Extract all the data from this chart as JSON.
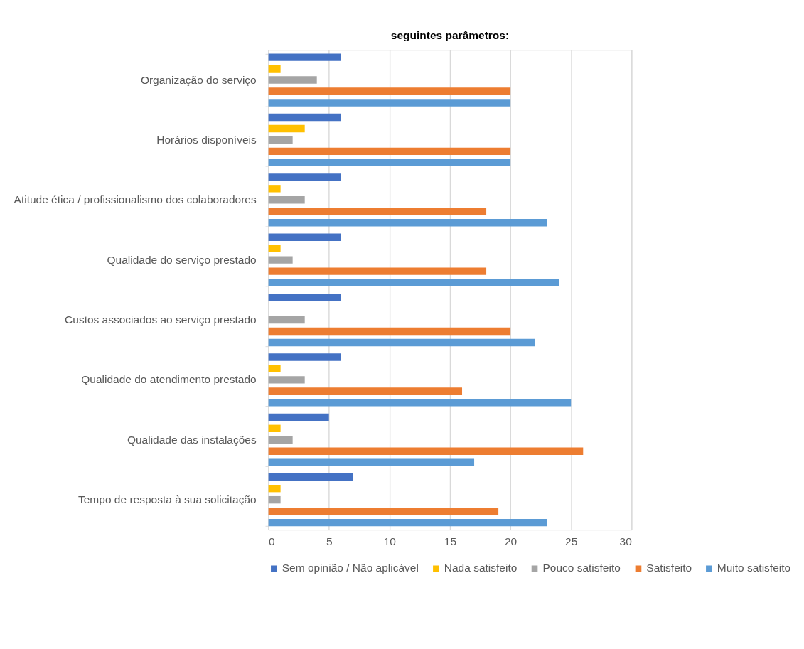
{
  "chart_data": {
    "type": "bar",
    "orientation": "horizontal",
    "title": "seguintes parâmetros:",
    "categories": [
      "Organização do serviço",
      "Horários disponíveis",
      "Atitude ética / profissionalismo dos colaboradores",
      "Qualidade do serviço prestado",
      "Custos associados ao serviço prestado",
      "Qualidade do atendimento prestado",
      "Qualidade das instalações",
      "Tempo de resposta à sua solicitação"
    ],
    "series": [
      {
        "name": "Sem opinião / Não aplicável",
        "color": "#4472c4",
        "values": [
          6,
          6,
          6,
          6,
          6,
          6,
          5,
          7
        ]
      },
      {
        "name": "Nada satisfeito",
        "color": "#ffc000",
        "values": [
          1,
          3,
          1,
          1,
          0,
          1,
          1,
          1
        ]
      },
      {
        "name": "Pouco satisfeito",
        "color": "#a5a5a5",
        "values": [
          4,
          2,
          3,
          2,
          3,
          3,
          2,
          1
        ]
      },
      {
        "name": "Satisfeito",
        "color": "#ed7d31",
        "values": [
          20,
          20,
          18,
          18,
          20,
          16,
          26,
          19
        ]
      },
      {
        "name": "Muito satisfeito",
        "color": "#5b9bd5",
        "values": [
          20,
          20,
          23,
          24,
          22,
          25,
          17,
          23
        ]
      }
    ],
    "xlim": [
      0,
      30
    ],
    "xticks": [
      0,
      5,
      10,
      15,
      20,
      25,
      30
    ],
    "grid": "x",
    "legend": "bottom"
  }
}
